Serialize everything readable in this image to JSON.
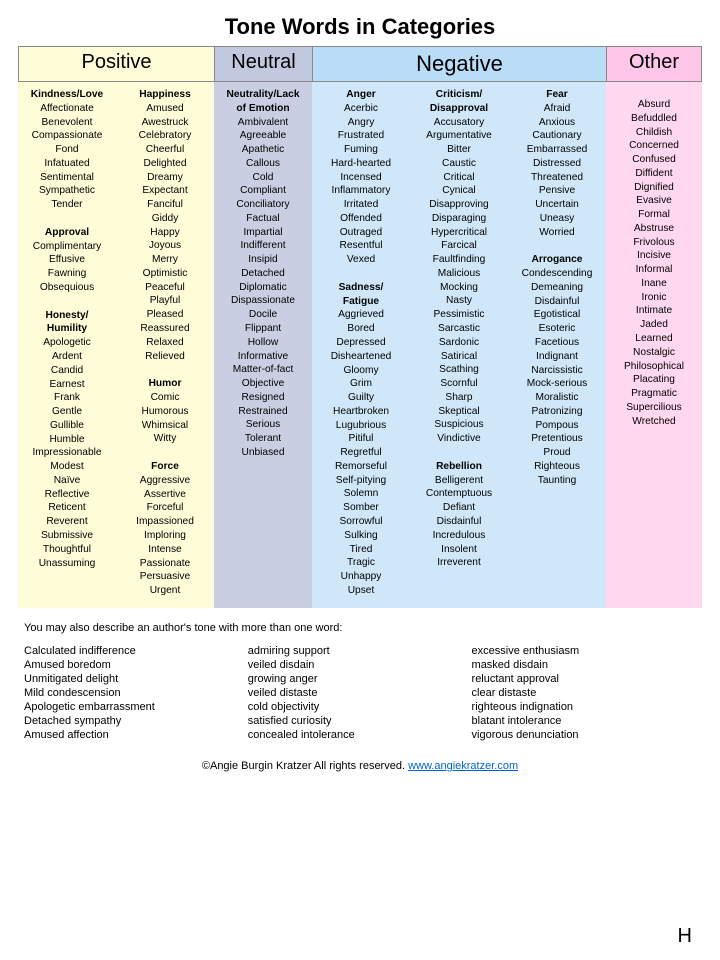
{
  "title": "Tone Words in Categories",
  "page_letter": "H",
  "colors": {
    "positive": "#fffcd8",
    "neutral": "#c9cee2",
    "negative": "#cfe7f9",
    "other": "#ffd8ef",
    "hdr_positive": "#fffcd8",
    "hdr_neutral": "#c2c8de",
    "hdr_negative": "#b9dcf7",
    "hdr_other": "#ffc6ea"
  },
  "widths": {
    "positive_hdr": 196,
    "neutral_hdr": 98,
    "negative_hdr": 294,
    "other_hdr": 96,
    "col": 98,
    "other_col": 96
  },
  "headers": {
    "positive": "Positive",
    "neutral": "Neutral",
    "negative": "Negative",
    "other": "Other"
  },
  "columns": [
    {
      "bg": "positive",
      "groups": [
        {
          "head": "Kindness/Love",
          "words": [
            "Affectionate",
            "Benevolent",
            "Compassionate",
            "Fond",
            "Infatuated",
            "Sentimental",
            "Sympathetic",
            "Tender"
          ]
        },
        {
          "head": "Approval",
          "words": [
            "Complimentary",
            "Effusive",
            "Fawning",
            "Obsequious"
          ]
        },
        {
          "head": "Honesty/ Humility",
          "words": [
            "Apologetic",
            "Ardent",
            "Candid",
            "Earnest",
            "Frank",
            "Gentle",
            "Gullible",
            "Humble",
            "Impressionable",
            "Modest",
            "Naïve",
            "Reflective",
            "Reticent",
            "Reverent",
            "Submissive",
            "Thoughtful",
            "Unassuming"
          ]
        }
      ]
    },
    {
      "bg": "positive",
      "groups": [
        {
          "head": "Happiness",
          "words": [
            "Amused",
            "Awestruck",
            "Celebratory",
            "Cheerful",
            "Delighted",
            "Dreamy",
            "Expectant",
            "Fanciful",
            "Giddy",
            "Happy",
            "Joyous",
            "Merry",
            "Optimistic",
            "Peaceful",
            "Playful",
            "Pleased",
            "Reassured",
            "Relaxed",
            "Relieved"
          ]
        },
        {
          "head": "Humor",
          "words": [
            "Comic",
            "Humorous",
            "Whimsical",
            "Witty"
          ]
        },
        {
          "head": "Force",
          "words": [
            "Aggressive",
            "Assertive",
            "Forceful",
            "Impassioned",
            "Imploring",
            "Intense",
            "Passionate",
            "Persuasive",
            "Urgent"
          ]
        }
      ]
    },
    {
      "bg": "neutral",
      "groups": [
        {
          "head": "Neutrality/Lack of Emotion",
          "words": [
            "Ambivalent",
            "Agreeable",
            "Apathetic",
            "Callous",
            "Cold",
            "Compliant",
            "Conciliatory",
            "Factual",
            "Impartial",
            "Indifferent",
            "Insipid",
            "Detached",
            "Diplomatic",
            "Dispassionate",
            "Docile",
            "Flippant",
            "Hollow",
            "Informative",
            "Matter-of-fact",
            "Objective",
            "Resigned",
            "Restrained",
            "Serious",
            "Tolerant",
            "Unbiased"
          ]
        }
      ]
    },
    {
      "bg": "negative",
      "groups": [
        {
          "head": "Anger",
          "words": [
            "Acerbic",
            "Angry",
            "Frustrated",
            "Fuming",
            "Hard-hearted",
            "Incensed",
            "Inflammatory",
            "Irritated",
            "Offended",
            "Outraged",
            "Resentful",
            "Vexed"
          ]
        },
        {
          "head": "Sadness/ Fatigue",
          "words": [
            "Aggrieved",
            "Bored",
            "Depressed",
            "Disheartened",
            "Gloomy",
            "Grim",
            "Guilty",
            "Heartbroken",
            "Lugubrious",
            "Pitiful",
            "Regretful",
            "Remorseful",
            "Self-pitying",
            "Solemn",
            "Somber",
            "Sorrowful",
            "Sulking",
            "Tired",
            "Tragic",
            "Unhappy",
            "Upset"
          ]
        }
      ]
    },
    {
      "bg": "negative",
      "groups": [
        {
          "head": "Criticism/ Disapproval",
          "words": [
            "Accusatory",
            "Argumentative",
            "Bitter",
            "Caustic",
            "Critical",
            "Cynical",
            "Disapproving",
            "Disparaging",
            "Hypercritical",
            "Farcical",
            "Faultfinding",
            "Malicious",
            "Mocking",
            "Nasty",
            "Pessimistic",
            "Sarcastic",
            "Sardonic",
            "Satirical",
            "Scathing",
            "Scornful",
            "Sharp",
            "Skeptical",
            "Suspicious",
            "Vindictive"
          ]
        },
        {
          "head": "Rebellion",
          "words": [
            "Belligerent",
            "Contemptuous",
            "Defiant",
            "Disdainful",
            "Incredulous",
            "Insolent",
            "Irreverent"
          ]
        }
      ]
    },
    {
      "bg": "negative",
      "groups": [
        {
          "head": "Fear",
          "words": [
            "Afraid",
            "Anxious",
            "Cautionary",
            "Embarrassed",
            "Distressed",
            "Threatened",
            "Pensive",
            "Uncertain",
            "Uneasy",
            "Worried"
          ]
        },
        {
          "head": "Arrogance",
          "words": [
            "Condescending",
            "Demeaning",
            "Disdainful",
            "Egotistical",
            "Esoteric",
            "Facetious",
            "Indignant",
            "Narcissistic",
            "Mock-serious",
            "Moralistic",
            "Patronizing",
            "Pompous",
            "Pretentious",
            "Proud",
            "Righteous",
            "Taunting"
          ]
        }
      ]
    },
    {
      "bg": "other",
      "groups": [
        {
          "head": "",
          "words": [
            "Absurd",
            "Befuddled",
            "Childish",
            "Concerned",
            "Confused",
            "Diffident",
            "Dignified",
            "Evasive",
            "Formal",
            "Abstruse",
            "Frivolous",
            "Incisive",
            "Informal",
            "Inane",
            "Ironic",
            "Intimate",
            "Jaded",
            "Learned",
            "Nostalgic",
            "Philosophical",
            "Placating",
            "Pragmatic",
            "Supercilious",
            "Wretched"
          ]
        }
      ]
    }
  ],
  "notes_intro": "You may also describe an author's tone with more than one word:",
  "phrases": [
    [
      "Calculated indifference",
      "admiring support",
      "excessive enthusiasm"
    ],
    [
      "Amused boredom",
      "veiled disdain",
      "masked disdain"
    ],
    [
      "Unmitigated delight",
      "growing anger",
      "reluctant approval"
    ],
    [
      "Mild condescension",
      "veiled distaste",
      "clear distaste"
    ],
    [
      "Apologetic embarrassment",
      "cold objectivity",
      "righteous indignation"
    ],
    [
      "Detached sympathy",
      "satisfied curiosity",
      "blatant intolerance"
    ],
    [
      "Amused affection",
      "concealed intolerance",
      "vigorous denunciation"
    ]
  ],
  "footer": {
    "copyright": "©Angie Burgin Kratzer    All rights reserved.  ",
    "link_text": "www.angiekratzer.com",
    "link_href": "http://www.angiekratzer.com"
  }
}
